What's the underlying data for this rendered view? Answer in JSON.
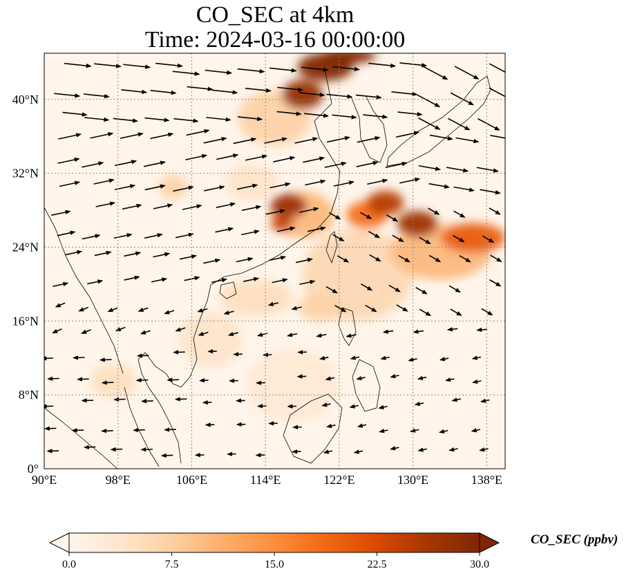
{
  "title": {
    "line1": "CO_SEC at 4km",
    "line2": "Time: 2024-03-16 00:00:00"
  },
  "map": {
    "extent": {
      "lon": [
        90,
        140
      ],
      "lat": [
        0,
        45
      ]
    },
    "lon_ticks": [
      {
        "value": 90,
        "label": "90°E"
      },
      {
        "value": 98,
        "label": "98°E"
      },
      {
        "value": 106,
        "label": "106°E"
      },
      {
        "value": 114,
        "label": "114°E"
      },
      {
        "value": 122,
        "label": "122°E"
      },
      {
        "value": 130,
        "label": "130°E"
      },
      {
        "value": 138,
        "label": "138°E"
      }
    ],
    "lat_ticks": [
      {
        "value": 0,
        "label": "0°"
      },
      {
        "value": 8,
        "label": "8°N"
      },
      {
        "value": 16,
        "label": "16°N"
      },
      {
        "value": 24,
        "label": "24°N"
      },
      {
        "value": 32,
        "label": "32°N"
      },
      {
        "value": 40,
        "label": "40°N"
      }
    ],
    "gridlines": true,
    "background_color": "#fff5eb",
    "plumes": [
      {
        "lon": 118.0,
        "lat": 40.5,
        "rlon": 2.2,
        "rlat": 1.6,
        "level": 28
      },
      {
        "lon": 120.5,
        "lat": 43.5,
        "rlon": 3.0,
        "rlat": 1.5,
        "level": 30
      },
      {
        "lon": 123.0,
        "lat": 44.7,
        "rlon": 3.0,
        "rlat": 0.8,
        "level": 30
      },
      {
        "lon": 115.0,
        "lat": 38.0,
        "rlon": 4.0,
        "rlat": 3.0,
        "level": 7
      },
      {
        "lon": 116.5,
        "lat": 28.5,
        "rlon": 2.0,
        "rlat": 1.3,
        "level": 27
      },
      {
        "lon": 115.8,
        "lat": 26.6,
        "rlon": 1.2,
        "rlat": 0.9,
        "level": 24
      },
      {
        "lon": 118.0,
        "lat": 27.5,
        "rlon": 3.5,
        "rlat": 2.5,
        "level": 10
      },
      {
        "lon": 127.0,
        "lat": 28.8,
        "rlon": 2.0,
        "rlat": 1.3,
        "level": 25
      },
      {
        "lon": 125.0,
        "lat": 27.5,
        "rlon": 2.2,
        "rlat": 1.5,
        "level": 18
      },
      {
        "lon": 130.5,
        "lat": 26.5,
        "rlon": 2.2,
        "rlat": 1.4,
        "level": 27
      },
      {
        "lon": 136.5,
        "lat": 25.0,
        "rlon": 3.5,
        "rlat": 1.6,
        "level": 20
      },
      {
        "lon": 133.0,
        "lat": 23.5,
        "rlon": 5.5,
        "rlat": 3.0,
        "level": 10
      },
      {
        "lon": 124.0,
        "lat": 21.0,
        "rlon": 6.0,
        "rlat": 5.0,
        "level": 6
      },
      {
        "lon": 113.0,
        "lat": 18.5,
        "rlon": 4.0,
        "rlat": 2.0,
        "level": 5
      },
      {
        "lon": 120.0,
        "lat": 17.5,
        "rlon": 2.5,
        "rlat": 1.5,
        "level": 7
      },
      {
        "lon": 104.0,
        "lat": 30.5,
        "rlon": 1.6,
        "rlat": 1.3,
        "level": 7
      },
      {
        "lon": 112.5,
        "lat": 31.0,
        "rlon": 3.0,
        "rlat": 2.0,
        "level": 4
      },
      {
        "lon": 108.0,
        "lat": 14.0,
        "rlon": 3.5,
        "rlat": 3.0,
        "level": 4
      },
      {
        "lon": 97.5,
        "lat": 9.5,
        "rlon": 2.5,
        "rlat": 1.8,
        "level": 5
      },
      {
        "lon": 117.0,
        "lat": 9.0,
        "rlon": 5.0,
        "rlat": 4.0,
        "level": 3
      }
    ]
  },
  "colorbar": {
    "label": "CO_SEC (ppbv)",
    "min": 0.0,
    "max": 30.0,
    "ticks": [
      "0.0",
      "7.5",
      "15.0",
      "22.5",
      "30.0"
    ],
    "colors": [
      "#fff5eb",
      "#fee6ce",
      "#fdd0a2",
      "#fdae6b",
      "#fd8d3c",
      "#f16913",
      "#d94801",
      "#a63603",
      "#7f2704"
    ],
    "extend": "both"
  }
}
